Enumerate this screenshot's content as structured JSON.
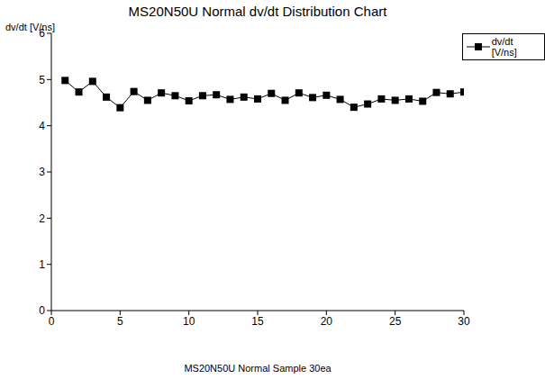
{
  "chart_data": {
    "type": "line",
    "title": "MS20N50U Normal dv/dt Distribution Chart",
    "x_label": "MS20N50U Normal Sample 30ea",
    "y_label": "dv/dt [V/ns]",
    "x": [
      1,
      2,
      3,
      4,
      5,
      6,
      7,
      8,
      9,
      10,
      11,
      12,
      13,
      14,
      15,
      16,
      17,
      18,
      19,
      20,
      21,
      22,
      23,
      24,
      25,
      26,
      27,
      28,
      29,
      30
    ],
    "series": [
      {
        "name": "dv/dt [V/ns]",
        "color": "#000000",
        "marker": "square",
        "line_style": "solid",
        "values": [
          4.98,
          4.73,
          4.96,
          4.62,
          4.39,
          4.74,
          4.55,
          4.71,
          4.65,
          4.54,
          4.65,
          4.67,
          4.57,
          4.62,
          4.58,
          4.7,
          4.55,
          4.71,
          4.61,
          4.66,
          4.57,
          4.4,
          4.47,
          4.58,
          4.55,
          4.58,
          4.53,
          4.72,
          4.69,
          4.73
        ]
      }
    ],
    "xlim": [
      0,
      30
    ],
    "ylim": [
      0,
      6
    ],
    "xticks": [
      0,
      5,
      10,
      15,
      20,
      25,
      30
    ],
    "yticks": [
      0,
      1,
      2,
      3,
      4,
      5,
      6
    ],
    "grid": false,
    "legend": "right"
  }
}
